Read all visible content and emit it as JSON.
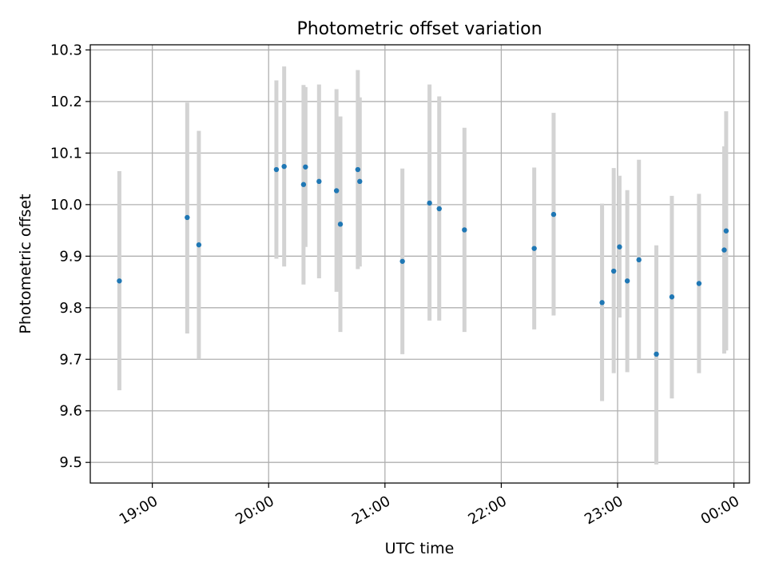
{
  "chart_data": {
    "type": "scatter",
    "title": "Photometric offset variation",
    "xlabel": "UTC time",
    "ylabel": "Photometric offset",
    "grid": true,
    "legend": "none",
    "xlim": [
      "18:28",
      "00:08"
    ],
    "ylim": [
      9.46,
      10.31
    ],
    "x_ticks": [
      "19:00",
      "20:00",
      "21:00",
      "22:00",
      "23:00",
      "00:00"
    ],
    "y_ticks": [
      "9.5",
      "9.6",
      "9.7",
      "9.8",
      "9.9",
      "10.0",
      "10.1",
      "10.2",
      "10.3"
    ],
    "colors": {
      "point": "#1f77b4",
      "errorbar": "#d3d3d3",
      "grid": "#b0b0b0"
    },
    "series": [
      {
        "points": [
          {
            "x": "18:43",
            "y": 9.852,
            "low": 9.64,
            "high": 10.065
          },
          {
            "x": "19:18",
            "y": 9.975,
            "low": 9.75,
            "high": 10.198
          },
          {
            "x": "19:24",
            "y": 9.922,
            "low": 9.7,
            "high": 10.143
          },
          {
            "x": "20:04",
            "y": 10.068,
            "low": 9.895,
            "high": 10.241
          },
          {
            "x": "20:08",
            "y": 10.074,
            "low": 9.88,
            "high": 10.268
          },
          {
            "x": "20:18",
            "y": 10.039,
            "low": 9.845,
            "high": 10.232
          },
          {
            "x": "20:19",
            "y": 10.073,
            "low": 9.918,
            "high": 10.228
          },
          {
            "x": "20:26",
            "y": 10.045,
            "low": 9.857,
            "high": 10.233
          },
          {
            "x": "20:35",
            "y": 10.027,
            "low": 9.831,
            "high": 10.224
          },
          {
            "x": "20:37",
            "y": 9.962,
            "low": 9.753,
            "high": 10.171
          },
          {
            "x": "20:46",
            "y": 10.068,
            "low": 9.875,
            "high": 10.261
          },
          {
            "x": "20:47",
            "y": 10.045,
            "low": 9.88,
            "high": 10.208
          },
          {
            "x": "21:09",
            "y": 9.89,
            "low": 9.71,
            "high": 10.07
          },
          {
            "x": "21:23",
            "y": 10.003,
            "low": 9.775,
            "high": 10.233
          },
          {
            "x": "21:28",
            "y": 9.992,
            "low": 9.775,
            "high": 10.21
          },
          {
            "x": "21:41",
            "y": 9.951,
            "low": 9.753,
            "high": 10.149
          },
          {
            "x": "22:17",
            "y": 9.915,
            "low": 9.758,
            "high": 10.072
          },
          {
            "x": "22:27",
            "y": 9.981,
            "low": 9.785,
            "high": 10.178
          },
          {
            "x": "22:52",
            "y": 9.81,
            "low": 9.619,
            "high": 10.002
          },
          {
            "x": "22:58",
            "y": 9.871,
            "low": 9.673,
            "high": 10.071
          },
          {
            "x": "23:01",
            "y": 9.918,
            "low": 9.781,
            "high": 10.056
          },
          {
            "x": "23:05",
            "y": 9.852,
            "low": 9.675,
            "high": 10.028
          },
          {
            "x": "23:11",
            "y": 9.893,
            "low": 9.7,
            "high": 10.087
          },
          {
            "x": "23:20",
            "y": 9.71,
            "low": 9.496,
            "high": 9.921
          },
          {
            "x": "23:28",
            "y": 9.821,
            "low": 9.624,
            "high": 10.017
          },
          {
            "x": "23:42",
            "y": 9.847,
            "low": 9.673,
            "high": 10.021
          },
          {
            "x": "23:55",
            "y": 9.912,
            "low": 9.711,
            "high": 10.113
          },
          {
            "x": "23:56",
            "y": 9.949,
            "low": 9.717,
            "high": 10.181
          }
        ]
      }
    ]
  }
}
